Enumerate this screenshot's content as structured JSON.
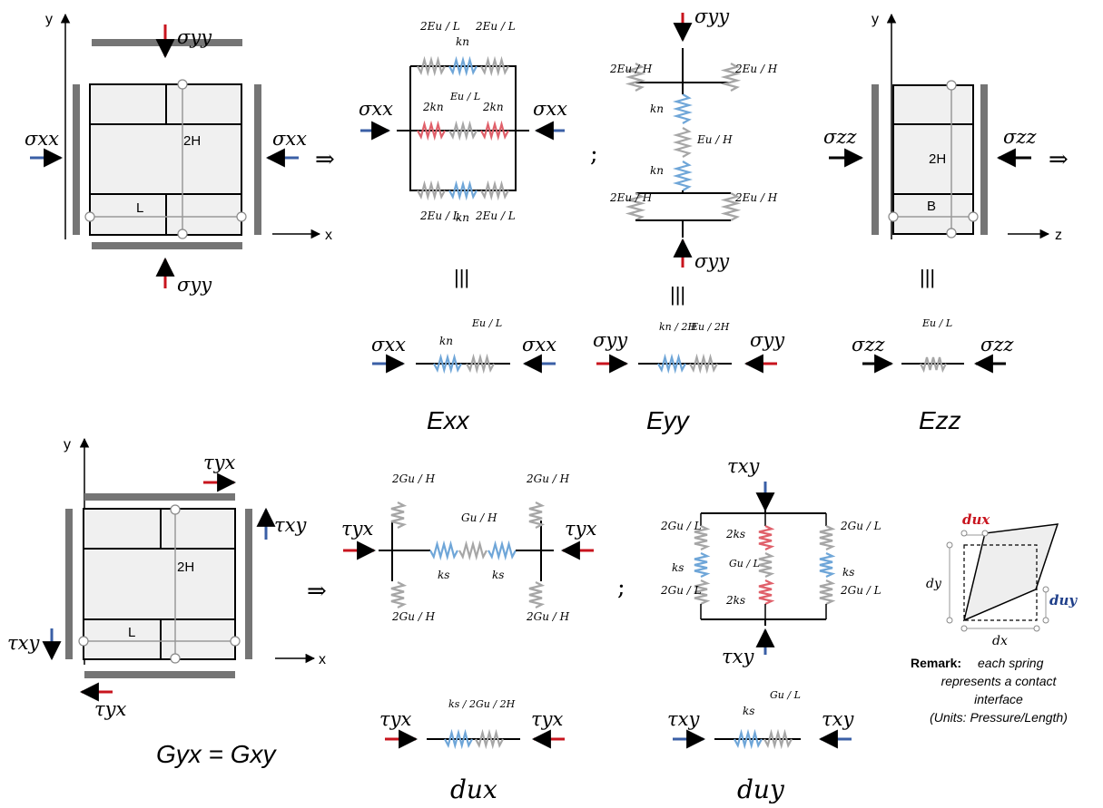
{
  "colors": {
    "blue": "#3a5fa6",
    "red": "#c8141e",
    "grey_spring": "#a6a6a6",
    "blue_spring": "#6fa6d8",
    "red_spring": "#e0606a",
    "wall": "#757575",
    "brick_fill": "#f0f0f0"
  },
  "axes": {
    "x": "x",
    "y": "y",
    "z": "z"
  },
  "symbols": {
    "sigma_xx": "σxx",
    "sigma_yy": "σyy",
    "sigma_zz": "σzz",
    "tau_xy": "τxy",
    "tau_yx": "τyx",
    "implies": "⇒",
    "equiv": "|||",
    "semicolon": ";"
  },
  "unit_cell": {
    "height_label": "2H",
    "length_label": "L",
    "width_label": "B"
  },
  "springs": {
    "two_Eu_over_L": "2Eu / L",
    "kn": "kn",
    "two_kn": "2kn",
    "Eu_over_L": "Eu / L",
    "two_Eu_over_H": "2Eu / H",
    "Eu_over_H": "Eu / H",
    "kn_over_2H": "kn / 2H",
    "Eu_over_2H": "Eu / 2H",
    "two_Gu_over_H": "2Gu / H",
    "Gu_over_H": "Gu / H",
    "ks": "ks",
    "two_Gu_over_L": "2Gu / L",
    "Gu_over_L": "Gu / L",
    "two_ks": "2ks",
    "ks_over_2": "ks / 2",
    "Gu_over_2H": "Gu / 2H"
  },
  "moduli": {
    "Exx": "Exx",
    "Eyy": "Eyy",
    "Ezz": "Ezz",
    "Gyx_eq_Gxy": "Gyx = Gxy",
    "dux": "dux",
    "duy": "duy"
  },
  "remark": {
    "dux_label": "dux",
    "duy_label": "duy",
    "dx": "dx",
    "dy": "dy",
    "title": "Remark:",
    "line1": "each spring",
    "line2": "represents a contact",
    "line3": "interface",
    "line4": "(Units: Pressure/Length)"
  }
}
